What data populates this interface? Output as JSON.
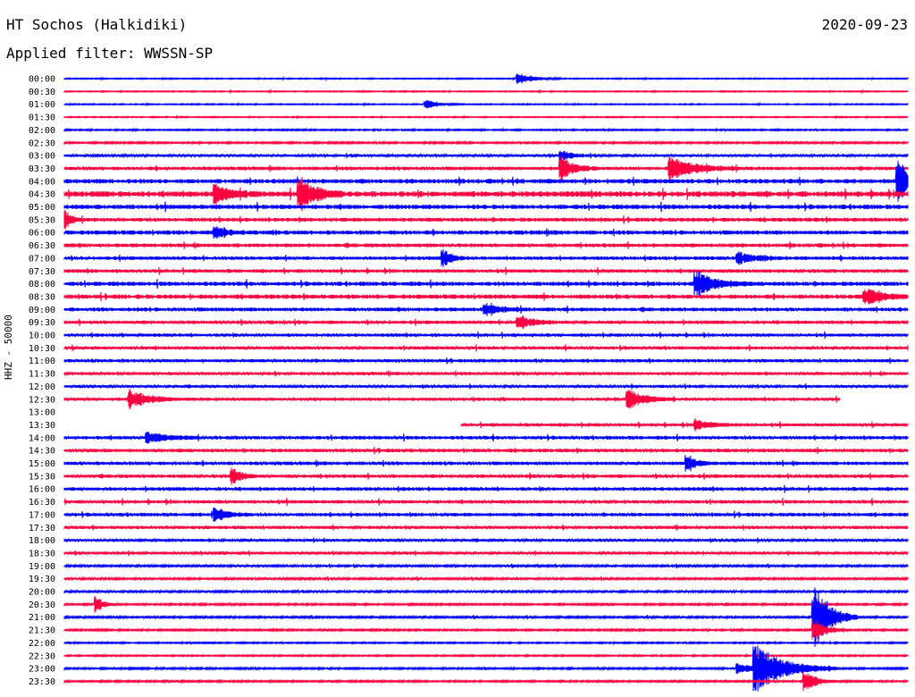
{
  "header": {
    "station": "HT Sochos (Halkidiki)",
    "date": "2020-09-23",
    "filter": "Applied filter: WWSSN-SP",
    "channel_label": "HHZ - 50000"
  },
  "chart_data": {
    "type": "line",
    "title": "HT Sochos (Halkidiki)",
    "subtitle": "Applied filter: WWSSN-SP",
    "ylabel": "HHZ - 50000",
    "xlabel": "",
    "rows": [
      "00:00",
      "00:30",
      "01:00",
      "01:30",
      "02:00",
      "02:30",
      "03:00",
      "03:30",
      "04:00",
      "04:30",
      "05:00",
      "05:30",
      "06:00",
      "06:30",
      "07:00",
      "07:30",
      "08:00",
      "08:30",
      "09:00",
      "09:30",
      "10:00",
      "10:30",
      "11:00",
      "11:30",
      "12:00",
      "12:30",
      "13:00",
      "13:30",
      "14:00",
      "14:30",
      "15:00",
      "15:30",
      "16:00",
      "16:30",
      "17:00",
      "17:30",
      "18:00",
      "18:30",
      "19:00",
      "19:30",
      "20:00",
      "20:30",
      "21:00",
      "21:30",
      "22:00",
      "22:30",
      "23:00",
      "23:30"
    ],
    "colors": [
      "#0000ff",
      "#ff0040"
    ],
    "noise_levels": [
      0.3,
      0.3,
      0.3,
      0.3,
      0.4,
      0.5,
      0.7,
      1.0,
      1.3,
      1.6,
      1.3,
      1.1,
      1.2,
      1.1,
      1.0,
      1.0,
      1.2,
      1.2,
      1.1,
      1.0,
      0.9,
      0.9,
      0.9,
      0.9,
      0.8,
      0.9,
      0,
      0.9,
      1.0,
      1.0,
      1.0,
      1.0,
      1.0,
      1.0,
      1.0,
      0.9,
      0.8,
      0.8,
      0.6,
      0.6,
      0.6,
      0.5,
      0.6,
      0.5,
      0.4,
      0.4,
      0.5,
      0.5
    ],
    "gaps": [
      {
        "row": "12:30",
        "from_fraction": 0.92,
        "to_fraction": 1.0
      },
      {
        "row": "13:00",
        "from_fraction": 0.0,
        "to_fraction": 1.0
      },
      {
        "row": "13:30",
        "from_fraction": 0.0,
        "to_fraction": 0.47
      }
    ],
    "events": [
      {
        "row": "00:00",
        "at": 0.54,
        "amp": 6,
        "dur": 0.05
      },
      {
        "row": "01:00",
        "at": 0.43,
        "amp": 5,
        "dur": 0.04
      },
      {
        "row": "03:00",
        "at": 0.59,
        "amp": 5,
        "dur": 0.04
      },
      {
        "row": "03:30",
        "at": 0.59,
        "amp": 14,
        "dur": 0.04
      },
      {
        "row": "03:30",
        "at": 0.72,
        "amp": 12,
        "dur": 0.08
      },
      {
        "row": "04:00",
        "at": 0.99,
        "amp": 22,
        "dur": 0.05
      },
      {
        "row": "04:30",
        "at": 0.28,
        "amp": 18,
        "dur": 0.05
      },
      {
        "row": "04:30",
        "at": 0.18,
        "amp": 10,
        "dur": 0.05
      },
      {
        "row": "05:30",
        "at": 0.0,
        "amp": 12,
        "dur": 0.02
      },
      {
        "row": "06:00",
        "at": 0.18,
        "amp": 6,
        "dur": 0.04
      },
      {
        "row": "07:00",
        "at": 0.45,
        "amp": 9,
        "dur": 0.03
      },
      {
        "row": "07:00",
        "at": 0.8,
        "amp": 6,
        "dur": 0.06
      },
      {
        "row": "08:00",
        "at": 0.75,
        "amp": 14,
        "dur": 0.06
      },
      {
        "row": "08:30",
        "at": 0.95,
        "amp": 8,
        "dur": 0.06
      },
      {
        "row": "09:00",
        "at": 0.5,
        "amp": 6,
        "dur": 0.05
      },
      {
        "row": "09:30",
        "at": 0.54,
        "amp": 8,
        "dur": 0.04
      },
      {
        "row": "12:30",
        "at": 0.08,
        "amp": 10,
        "dur": 0.06
      },
      {
        "row": "12:30",
        "at": 0.67,
        "amp": 10,
        "dur": 0.05
      },
      {
        "row": "13:30",
        "at": 0.75,
        "amp": 5,
        "dur": 0.05
      },
      {
        "row": "14:00",
        "at": 0.1,
        "amp": 6,
        "dur": 0.06
      },
      {
        "row": "15:00",
        "at": 0.74,
        "amp": 8,
        "dur": 0.03
      },
      {
        "row": "15:30",
        "at": 0.2,
        "amp": 8,
        "dur": 0.03
      },
      {
        "row": "17:00",
        "at": 0.18,
        "amp": 7,
        "dur": 0.04
      },
      {
        "row": "20:30",
        "at": 0.04,
        "amp": 10,
        "dur": 0.02
      },
      {
        "row": "21:00",
        "at": 0.89,
        "amp": 40,
        "dur": 0.05
      },
      {
        "row": "21:30",
        "at": 0.89,
        "amp": 12,
        "dur": 0.04
      },
      {
        "row": "23:00",
        "at": 0.82,
        "amp": 25,
        "dur": 0.1
      },
      {
        "row": "23:00",
        "at": 0.8,
        "amp": 6,
        "dur": 0.05
      },
      {
        "row": "23:30",
        "at": 0.88,
        "amp": 10,
        "dur": 0.04
      }
    ]
  }
}
